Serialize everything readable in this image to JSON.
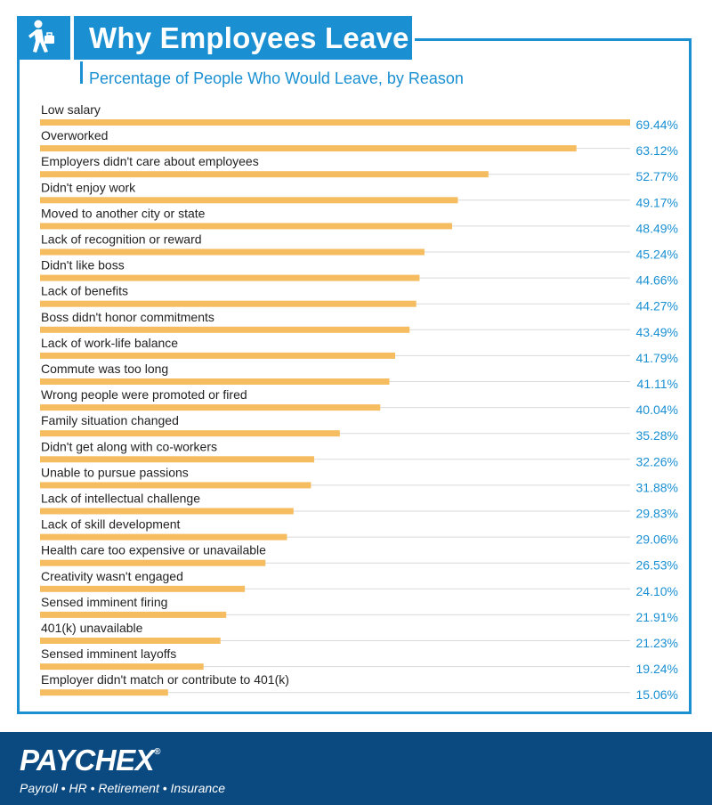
{
  "header": {
    "title": "Why Employees Leave",
    "subtitle": "Percentage of People Who Would Leave, by Reason",
    "icon": "walking-person-briefcase-icon"
  },
  "footer": {
    "brand": "PAYCHEX",
    "registered_mark": "®",
    "tagline": "Payroll • HR • Retirement • Insurance"
  },
  "colors": {
    "accent_blue": "#1a90d2",
    "footer_navy": "#0b4a80",
    "bar": "#f6bd60",
    "gridline": "#d9d9d9",
    "label_text": "#222222",
    "value_text": "#1a90d2"
  },
  "chart_data": {
    "type": "bar",
    "orientation": "horizontal",
    "title": "Why Employees Leave",
    "subtitle": "Percentage of People Who Would Leave, by Reason",
    "xlabel": "",
    "ylabel": "",
    "xlim": [
      0,
      69.44
    ],
    "grid": true,
    "value_suffix": "%",
    "categories": [
      "Low salary",
      "Overworked",
      "Employers didn't care about employees",
      "Didn't enjoy work",
      "Moved to another city or state",
      "Lack of recognition or reward",
      "Didn't like boss",
      "Lack of benefits",
      "Boss didn't honor commitments",
      "Lack of work-life balance",
      "Commute was too long",
      "Wrong people were promoted or fired",
      "Family situation changed",
      "Didn't get along with co-workers",
      "Unable to pursue passions",
      "Lack of intellectual challenge",
      "Lack of skill development",
      "Health care too expensive or unavailable",
      "Creativity wasn't engaged",
      "Sensed imminent firing",
      "401(k) unavailable",
      "Sensed imminent layoffs",
      "Employer didn't match or contribute to 401(k)"
    ],
    "values": [
      69.44,
      63.12,
      52.77,
      49.17,
      48.49,
      45.24,
      44.66,
      44.27,
      43.49,
      41.79,
      41.11,
      40.04,
      35.28,
      32.26,
      31.88,
      29.83,
      29.06,
      26.53,
      24.1,
      21.91,
      21.23,
      19.24,
      15.06
    ],
    "value_labels": [
      "69.44%",
      "63.12%",
      "52.77%",
      "49.17%",
      "48.49%",
      "45.24%",
      "44.66%",
      "44.27%",
      "43.49%",
      "41.79%",
      "41.11%",
      "40.04%",
      "35.28%",
      "32.26%",
      "31.88%",
      "29.83%",
      "29.06%",
      "26.53%",
      "24.10%",
      "21.91%",
      "21.23%",
      "19.24%",
      "15.06%"
    ]
  }
}
